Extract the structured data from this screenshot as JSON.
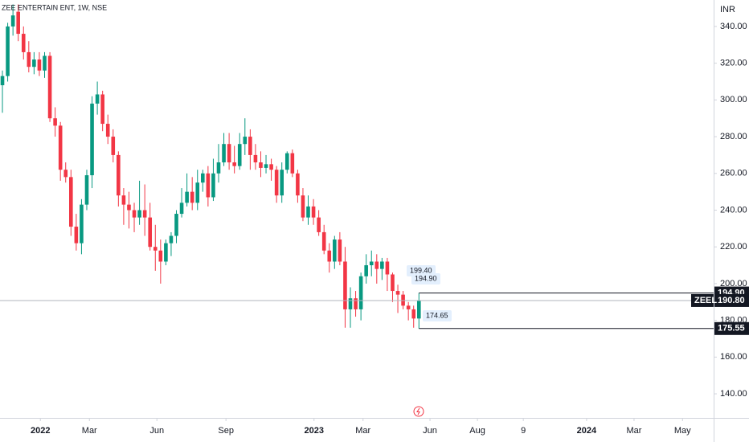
{
  "chart_data": {
    "type": "candlestick",
    "title": "ZEE ENTERTAIN ENT, 1W, NSE",
    "currency": "INR",
    "up_color": "#089981",
    "down_color": "#f23645",
    "open": [
      308,
      313,
      340,
      348,
      336,
      326,
      318,
      322,
      316,
      324,
      290,
      286,
      262,
      258,
      231,
      222,
      243,
      259,
      298,
      303,
      287,
      280,
      270,
      248,
      243,
      240,
      236,
      240,
      236,
      220,
      218,
      212,
      222,
      226,
      238,
      244,
      250,
      244,
      255,
      260,
      247,
      260,
      266,
      276,
      266,
      264,
      276,
      280,
      270,
      266,
      263,
      265,
      262,
      248,
      262,
      271,
      260,
      248,
      236,
      242,
      236,
      228,
      218,
      212,
      224,
      212,
      186,
      192,
      186,
      204,
      210,
      212,
      208,
      212,
      205,
      196,
      194,
      188,
      186,
      181
    ],
    "high": [
      316,
      342,
      352,
      352,
      340,
      332,
      326,
      326,
      326,
      326,
      296,
      288,
      266,
      262,
      238,
      246,
      262,
      302,
      310,
      305,
      292,
      284,
      272,
      252,
      250,
      244,
      256,
      254,
      244,
      232,
      224,
      224,
      228,
      240,
      252,
      260,
      258,
      262,
      262,
      264,
      268,
      276,
      282,
      282,
      275,
      282,
      290,
      284,
      276,
      272,
      270,
      268,
      264,
      266,
      272,
      273,
      262,
      252,
      248,
      246,
      240,
      232,
      222,
      226,
      228,
      220,
      198,
      196,
      206,
      216,
      218,
      216,
      214,
      214,
      206,
      199.4,
      196,
      190,
      188,
      194.9
    ],
    "low": [
      293,
      310,
      335,
      332,
      322,
      315,
      314,
      313,
      312,
      288,
      280,
      256,
      255,
      226,
      218,
      216,
      240,
      252,
      292,
      283,
      276,
      266,
      242,
      232,
      230,
      228,
      232,
      226,
      218,
      207,
      200,
      210,
      215,
      222,
      236,
      242,
      240,
      240,
      250,
      242,
      245,
      255,
      264,
      262,
      260,
      262,
      270,
      262,
      262,
      258,
      260,
      256,
      244,
      244,
      260,
      258,
      244,
      234,
      232,
      232,
      226,
      216,
      206,
      208,
      210,
      176,
      176,
      182,
      180,
      200,
      204,
      200,
      202,
      196,
      190,
      184,
      186,
      180,
      176,
      175.55
    ],
    "close": [
      313,
      340,
      346,
      336,
      326,
      318,
      322,
      316,
      324,
      290,
      286,
      262,
      258,
      231,
      222,
      243,
      259,
      298,
      303,
      287,
      280,
      270,
      248,
      243,
      240,
      236,
      240,
      236,
      220,
      218,
      212,
      222,
      226,
      238,
      244,
      250,
      244,
      255,
      260,
      247,
      260,
      266,
      276,
      266,
      264,
      276,
      280,
      270,
      266,
      263,
      265,
      262,
      248,
      262,
      271,
      260,
      248,
      236,
      242,
      236,
      228,
      218,
      212,
      224,
      212,
      186,
      192,
      186,
      204,
      210,
      212,
      208,
      212,
      205,
      196,
      194,
      188,
      186,
      181,
      190.8
    ],
    "xlim": [
      -0.46,
      134.9
    ],
    "xticks": [
      {
        "value": 7.2,
        "label": "2022"
      },
      {
        "value": 16.5,
        "label": "Mar"
      },
      {
        "value": 29.3,
        "label": "Jun"
      },
      {
        "value": 42.4,
        "label": "Sep"
      },
      {
        "value": 59.1,
        "label": "2023"
      },
      {
        "value": 68.4,
        "label": "Mar"
      },
      {
        "value": 81.1,
        "label": "Jun"
      },
      {
        "value": 90.1,
        "label": "Aug"
      },
      {
        "value": 98.8,
        "label": "9"
      },
      {
        "value": 110.8,
        "label": "2024"
      },
      {
        "value": 119.8,
        "label": "Mar"
      },
      {
        "value": 129.0,
        "label": "May"
      }
    ],
    "ylim": [
      126.9,
      354.4
    ],
    "yticks": [
      {
        "value": 140,
        "label": "140.00"
      },
      {
        "value": 160,
        "label": "160.00"
      },
      {
        "value": 180,
        "label": "180.00"
      },
      {
        "value": 200,
        "label": "200.00"
      },
      {
        "value": 220,
        "label": "220.00"
      },
      {
        "value": 240,
        "label": "240.00"
      },
      {
        "value": 260,
        "label": "260.00"
      },
      {
        "value": 280,
        "label": "280.00"
      },
      {
        "value": 300,
        "label": "300.00"
      },
      {
        "value": 320,
        "label": "320.00"
      },
      {
        "value": 340,
        "label": "340.00"
      }
    ],
    "annotations": [
      "199.40",
      "194.90",
      "174.65"
    ],
    "high_line": {
      "value": 194.9,
      "label": "194.90"
    },
    "low_line": {
      "value": 175.55,
      "label": "175.55"
    },
    "last_price": {
      "symbol": "ZEEL",
      "value": 190.8,
      "label": "190.80"
    }
  }
}
